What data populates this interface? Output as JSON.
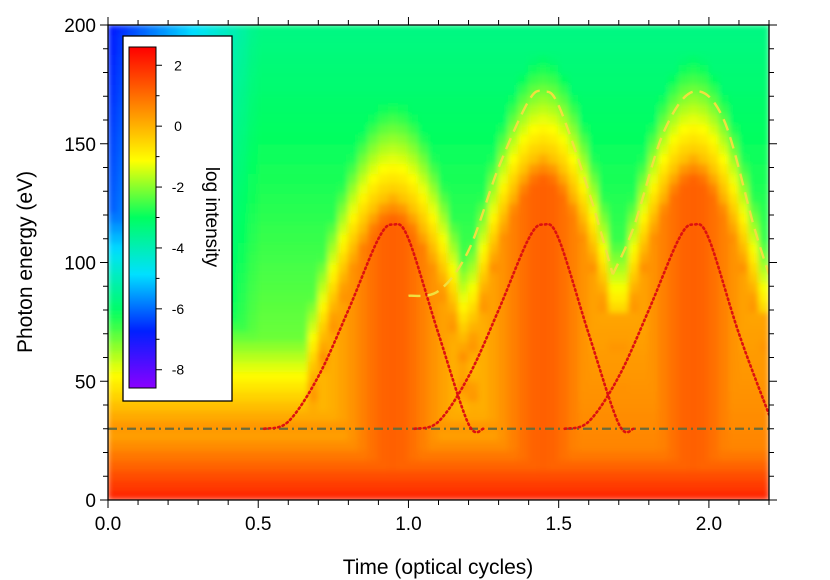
{
  "chart_data": {
    "type": "heatmap",
    "xlabel": "Time (optical cycles)",
    "ylabel": "Photon energy (eV)",
    "xlim": [
      0.0,
      2.2
    ],
    "ylim": [
      0,
      200
    ],
    "x_ticks": [
      "0.0",
      "0.5",
      "1.0",
      "1.5",
      "2.0"
    ],
    "x_tick_values": [
      0.0,
      0.5,
      1.0,
      1.5,
      2.0
    ],
    "y_ticks": [
      "0",
      "50",
      "100",
      "150",
      "200"
    ],
    "y_tick_values": [
      0,
      50,
      100,
      150,
      200
    ],
    "colorbar": {
      "title": "log intensity",
      "range": [
        -8.6,
        2.6
      ],
      "tick_labels": [
        "2",
        "0",
        "-2",
        "-4",
        "-6",
        "-8"
      ],
      "tick_values": [
        2,
        0,
        -2,
        -4,
        -6,
        -8
      ],
      "colors": [
        "#8a00ff",
        "#0020ff",
        "#00e0ff",
        "#00ff60",
        "#ffff00",
        "#ff8000",
        "#ff0000"
      ],
      "position": "top-left"
    },
    "reference_line": {
      "y": 30,
      "style": "dash-dot",
      "color": "#6b6b3a"
    },
    "series": [
      {
        "style": "dotted",
        "color": "#dd1010",
        "segments": [
          {
            "x": [
              0.52,
              0.6,
              0.7,
              0.8,
              0.9,
              0.95,
              1.0,
              1.1,
              1.2,
              1.25
            ],
            "y": [
              30,
              33,
              52,
              80,
              110,
              116,
              110,
              70,
              32,
              30
            ]
          },
          {
            "x": [
              1.02,
              1.1,
              1.2,
              1.3,
              1.4,
              1.45,
              1.5,
              1.6,
              1.7,
              1.75
            ],
            "y": [
              30,
              33,
              52,
              80,
              110,
              116,
              110,
              70,
              32,
              30
            ]
          },
          {
            "x": [
              1.52,
              1.6,
              1.7,
              1.8,
              1.9,
              1.95,
              2.0,
              2.1,
              2.2
            ],
            "y": [
              30,
              33,
              52,
              80,
              110,
              116,
              110,
              70,
              36
            ]
          }
        ]
      },
      {
        "style": "dashed",
        "color": "#f0e040",
        "segments": [
          {
            "x": [
              1.0,
              1.1,
              1.2,
              1.3,
              1.4,
              1.45,
              1.5,
              1.6,
              1.68
            ],
            "y": [
              86,
              88,
              105,
              140,
              168,
              172,
              166,
              130,
              95
            ]
          },
          {
            "x": [
              1.68,
              1.75,
              1.85,
              1.95,
              2.05,
              2.15,
              2.2
            ],
            "y": [
              95,
              115,
              155,
              172,
              160,
              115,
              95
            ]
          }
        ]
      }
    ]
  }
}
